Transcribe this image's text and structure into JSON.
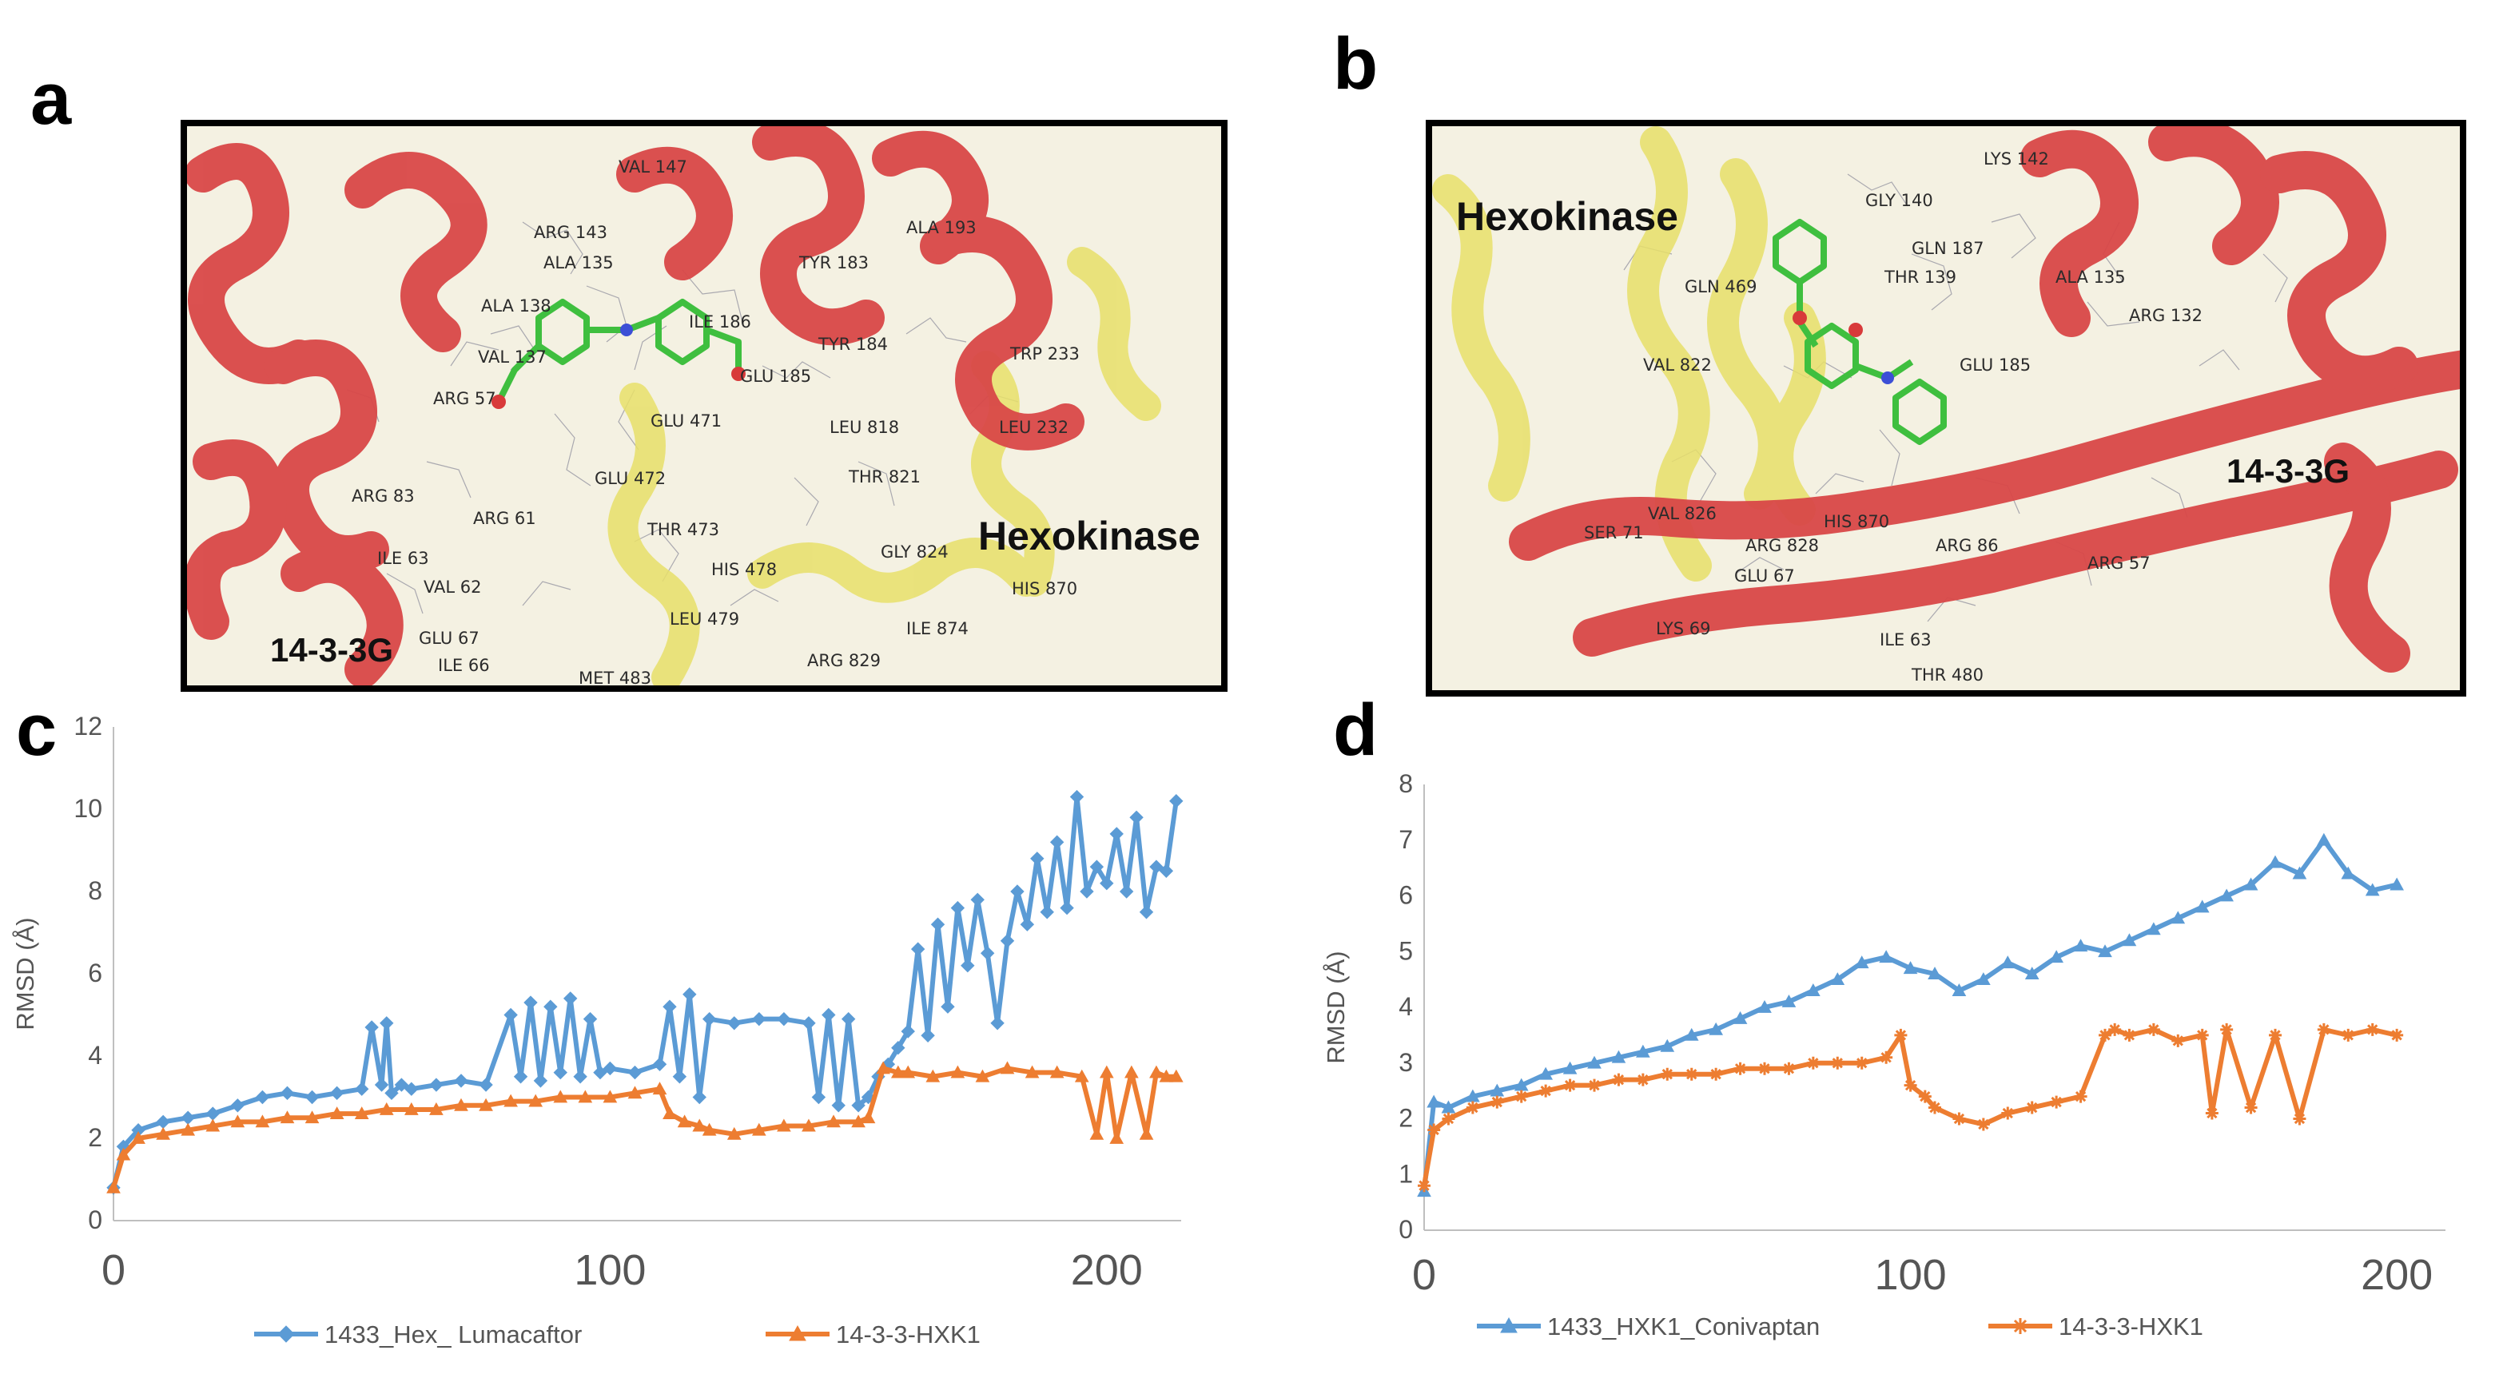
{
  "figure": {
    "panel_labels": [
      "a",
      "b",
      "c",
      "d"
    ]
  },
  "panel_a": {
    "protein_labels": [
      "Hexokinase",
      "14-3-3G"
    ],
    "residues": [
      "VAL 147",
      "ARG 143",
      "ALA 135",
      "ALA 193",
      "TYR 183",
      "ALA 138",
      "ILE 186",
      "VAL 137",
      "TYR 184",
      "TRP 233",
      "GLU 185",
      "ARG 57",
      "GLU 471",
      "LEU 818",
      "LEU 232",
      "GLU 472",
      "THR 821",
      "ARG 83",
      "ARG 61",
      "THR 473",
      "ILE 63",
      "GLY 824",
      "HIS 478",
      "VAL 62",
      "HIS 870",
      "LEU 479",
      "ILE 874",
      "GLU 67",
      "ILE 66",
      "ARG 829",
      "MET 483"
    ]
  },
  "panel_b": {
    "protein_labels": [
      "Hexokinase",
      "14-3-3G"
    ],
    "residues": [
      "LYS 142",
      "GLY 140",
      "GLN 187",
      "THR 139",
      "ALA 135",
      "GLN 469",
      "ARG 132",
      "VAL 822",
      "GLU 185",
      "SER 71",
      "VAL 826",
      "HIS 870",
      "ARG 828",
      "ARG 86",
      "ARG 57",
      "GLU 67",
      "LYS 69",
      "ILE 63",
      "THR 480"
    ]
  },
  "chart_data": [
    {
      "id": "c",
      "type": "line",
      "title": "",
      "xlabel": "",
      "ylabel": "RMSD (Å)",
      "xlim": [
        0,
        215
      ],
      "ylim": [
        0,
        12
      ],
      "xticks": [
        0,
        100,
        200
      ],
      "yticks": [
        0,
        2,
        4,
        6,
        8,
        10,
        12
      ],
      "legend_position": "bottom",
      "series": [
        {
          "name": "1433_Hex_ Lumacaftor",
          "color": "#5b9bd5",
          "marker": "diamond",
          "x": [
            0,
            2,
            5,
            10,
            15,
            20,
            25,
            30,
            35,
            40,
            45,
            50,
            52,
            54,
            55,
            56,
            58,
            60,
            65,
            70,
            75,
            80,
            82,
            84,
            86,
            88,
            90,
            92,
            94,
            96,
            98,
            100,
            105,
            110,
            112,
            114,
            116,
            118,
            120,
            125,
            130,
            135,
            140,
            142,
            144,
            146,
            148,
            150,
            152,
            154,
            156,
            158,
            160,
            162,
            164,
            166,
            168,
            170,
            172,
            174,
            176,
            178,
            180,
            182,
            184,
            186,
            188,
            190,
            192,
            194,
            196,
            198,
            200,
            202,
            204,
            206,
            208,
            210,
            212,
            214
          ],
          "y": [
            0.8,
            1.8,
            2.2,
            2.4,
            2.5,
            2.6,
            2.8,
            3.0,
            3.1,
            3.0,
            3.1,
            3.2,
            4.7,
            3.3,
            4.8,
            3.1,
            3.3,
            3.2,
            3.3,
            3.4,
            3.3,
            5.0,
            3.5,
            5.3,
            3.4,
            5.2,
            3.6,
            5.4,
            3.5,
            4.9,
            3.6,
            3.7,
            3.6,
            3.8,
            5.2,
            3.5,
            5.5,
            3.0,
            4.9,
            4.8,
            4.9,
            4.9,
            4.8,
            3.0,
            5.0,
            2.8,
            4.9,
            2.8,
            3.0,
            3.5,
            3.8,
            4.2,
            4.6,
            6.6,
            4.5,
            7.2,
            5.2,
            7.6,
            6.2,
            7.8,
            6.5,
            4.8,
            6.8,
            8.0,
            7.2,
            8.8,
            7.5,
            9.2,
            7.6,
            10.3,
            8.0,
            8.6,
            8.2,
            9.4,
            8.0,
            9.8,
            7.5,
            8.6,
            8.5,
            10.2
          ]
        },
        {
          "name": "14-3-3-HXK1",
          "color": "#ed7d31",
          "marker": "triangle",
          "x": [
            0,
            2,
            5,
            10,
            15,
            20,
            25,
            30,
            35,
            40,
            45,
            50,
            55,
            60,
            65,
            70,
            75,
            80,
            85,
            90,
            95,
            100,
            105,
            110,
            112,
            115,
            118,
            120,
            125,
            130,
            135,
            140,
            145,
            150,
            152,
            155,
            158,
            160,
            165,
            170,
            175,
            180,
            185,
            190,
            195,
            198,
            200,
            202,
            205,
            208,
            210,
            212,
            214
          ],
          "y": [
            0.8,
            1.6,
            2.0,
            2.1,
            2.2,
            2.3,
            2.4,
            2.4,
            2.5,
            2.5,
            2.6,
            2.6,
            2.7,
            2.7,
            2.7,
            2.8,
            2.8,
            2.9,
            2.9,
            3.0,
            3.0,
            3.0,
            3.1,
            3.2,
            2.6,
            2.4,
            2.3,
            2.2,
            2.1,
            2.2,
            2.3,
            2.3,
            2.4,
            2.4,
            2.5,
            3.7,
            3.6,
            3.6,
            3.5,
            3.6,
            3.5,
            3.7,
            3.6,
            3.6,
            3.5,
            2.1,
            3.6,
            2.0,
            3.6,
            2.1,
            3.6,
            3.5,
            3.5
          ]
        }
      ]
    },
    {
      "id": "d",
      "type": "line",
      "title": "",
      "xlabel": "",
      "ylabel": "RMSD (Å)",
      "xlim": [
        0,
        210
      ],
      "ylim": [
        0,
        8
      ],
      "xticks": [
        0,
        100,
        200
      ],
      "yticks": [
        0,
        1,
        2,
        3,
        4,
        5,
        6,
        7,
        8
      ],
      "legend_position": "bottom",
      "series": [
        {
          "name": "1433_HXK1_Conivaptan",
          "color": "#5b9bd5",
          "marker": "triangle",
          "x": [
            0,
            2,
            5,
            10,
            15,
            20,
            25,
            30,
            35,
            40,
            45,
            50,
            55,
            60,
            65,
            70,
            75,
            80,
            85,
            90,
            95,
            100,
            105,
            110,
            115,
            120,
            125,
            130,
            135,
            140,
            145,
            150,
            155,
            160,
            165,
            170,
            175,
            180,
            185,
            190,
            195,
            200
          ],
          "y": [
            0.7,
            2.3,
            2.2,
            2.4,
            2.5,
            2.6,
            2.8,
            2.9,
            3.0,
            3.1,
            3.2,
            3.3,
            3.5,
            3.6,
            3.8,
            4.0,
            4.1,
            4.3,
            4.5,
            4.8,
            4.9,
            4.7,
            4.6,
            4.3,
            4.5,
            4.8,
            4.6,
            4.9,
            5.1,
            5.0,
            5.2,
            5.4,
            5.6,
            5.8,
            6.0,
            6.2,
            6.6,
            6.4,
            7.0,
            6.4,
            6.1,
            6.2
          ]
        },
        {
          "name": "14-3-3-HXK1",
          "color": "#ed7d31",
          "marker": "star",
          "x": [
            0,
            2,
            5,
            10,
            15,
            20,
            25,
            30,
            35,
            40,
            45,
            50,
            55,
            60,
            65,
            70,
            75,
            80,
            85,
            90,
            95,
            98,
            100,
            103,
            105,
            110,
            115,
            120,
            125,
            130,
            135,
            140,
            142,
            145,
            150,
            155,
            160,
            162,
            165,
            170,
            175,
            180,
            185,
            190,
            195,
            200
          ],
          "y": [
            0.8,
            1.8,
            2.0,
            2.2,
            2.3,
            2.4,
            2.5,
            2.6,
            2.6,
            2.7,
            2.7,
            2.8,
            2.8,
            2.8,
            2.9,
            2.9,
            2.9,
            3.0,
            3.0,
            3.0,
            3.1,
            3.5,
            2.6,
            2.4,
            2.2,
            2.0,
            1.9,
            2.1,
            2.2,
            2.3,
            2.4,
            3.5,
            3.6,
            3.5,
            3.6,
            3.4,
            3.5,
            2.1,
            3.6,
            2.2,
            3.5,
            2.0,
            3.6,
            3.5,
            3.6,
            3.5
          ]
        }
      ]
    }
  ]
}
